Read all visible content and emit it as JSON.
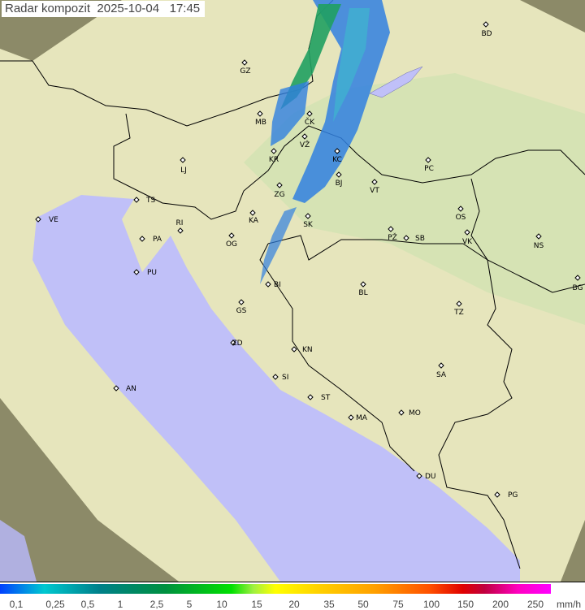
{
  "title": "Radar kompozit  2025-10-04   17:45",
  "colors": {
    "sea": "#c0c0f8",
    "land": "#e6e5bc",
    "outside": "#8c8a68",
    "echo_green": "#20a060",
    "echo_blue": "#3080e0"
  },
  "cities": [
    "GZ",
    "BD",
    "MB",
    "KR",
    "LJ",
    "ZG",
    "VŽ",
    "ČK",
    "KC",
    "BJ",
    "VT",
    "PC",
    "TS",
    "VE",
    "RI",
    "PA",
    "KA",
    "SK",
    "OG",
    "OS",
    "PŽ",
    "SB",
    "VK",
    "NS",
    "PU",
    "BI",
    "BL",
    "BG",
    "GS",
    "TZ",
    "ZD",
    "KN",
    "SA",
    "SI",
    "AN",
    "ST",
    "MO",
    "MA",
    "DU",
    "PG"
  ],
  "legend": {
    "labels": [
      "0,1",
      "0,25",
      "0,5",
      "1",
      "2,5",
      "5",
      "10",
      "15",
      "20",
      "35",
      "50",
      "75",
      "100",
      "150",
      "200",
      "250"
    ],
    "unit": "mm/h"
  }
}
